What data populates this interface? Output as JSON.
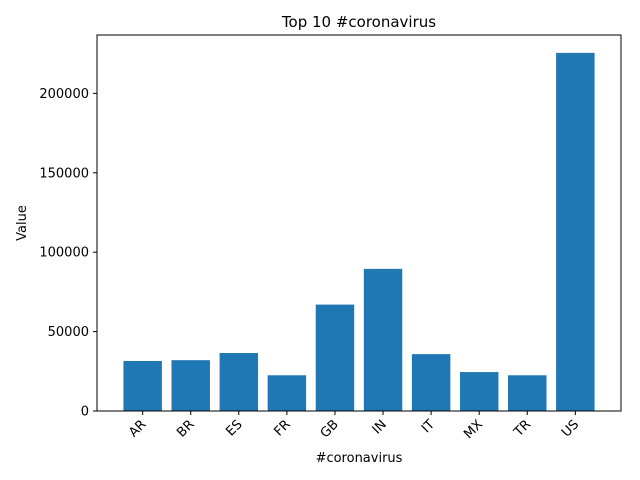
{
  "chart_data": {
    "type": "bar",
    "title": "Top 10 #coronavirus",
    "xlabel": "#coronavirus",
    "ylabel": "Value",
    "categories": [
      "AR",
      "BR",
      "ES",
      "FR",
      "GB",
      "IN",
      "IT",
      "MX",
      "TR",
      "US"
    ],
    "values": [
      31500,
      32000,
      36500,
      22500,
      67000,
      89500,
      35800,
      24500,
      22500,
      225500
    ],
    "ylim": [
      0,
      236750
    ],
    "yticks": [
      0,
      50000,
      100000,
      150000,
      200000
    ],
    "ytick_labels": [
      "0",
      "50000",
      "100000",
      "150000",
      "200000"
    ],
    "grid": false,
    "bar_color": "#1f77b4"
  }
}
